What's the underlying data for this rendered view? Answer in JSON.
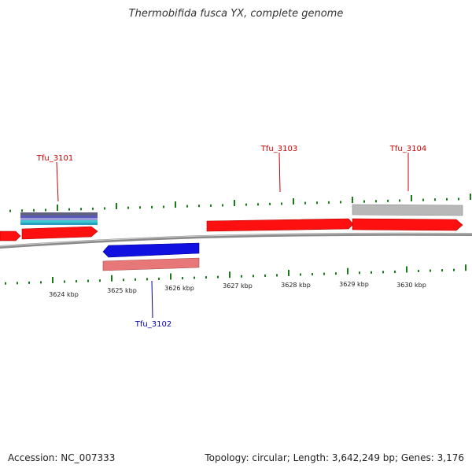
{
  "title": "Thermobifida fusca YX, complete genome",
  "footer": {
    "accession": "Accession: NC_007333",
    "summary": "Topology: circular; Length: 3,642,249 bp; Genes: 3,176"
  },
  "colors": {
    "forward_gene": "#ff1010",
    "reverse_gene": "#1010e0",
    "reverse_gene_light": "#e87878",
    "grey_feature": "#b8b8b8",
    "backbone": "#8a8a8a",
    "tick": "#1a7a1a",
    "label_forward": "#cc0000",
    "label_reverse": "#0000aa"
  },
  "gene_labels": [
    {
      "id": "Tfu_3101",
      "strand": "forward"
    },
    {
      "id": "Tfu_3102",
      "strand": "reverse"
    },
    {
      "id": "Tfu_3103",
      "strand": "forward"
    },
    {
      "id": "Tfu_3104",
      "strand": "forward"
    }
  ],
  "kbp_labels": [
    "3624 kbp",
    "3625 kbp",
    "3626 kbp",
    "3627 kbp",
    "3628 kbp",
    "3629 kbp",
    "3630 kbp"
  ]
}
